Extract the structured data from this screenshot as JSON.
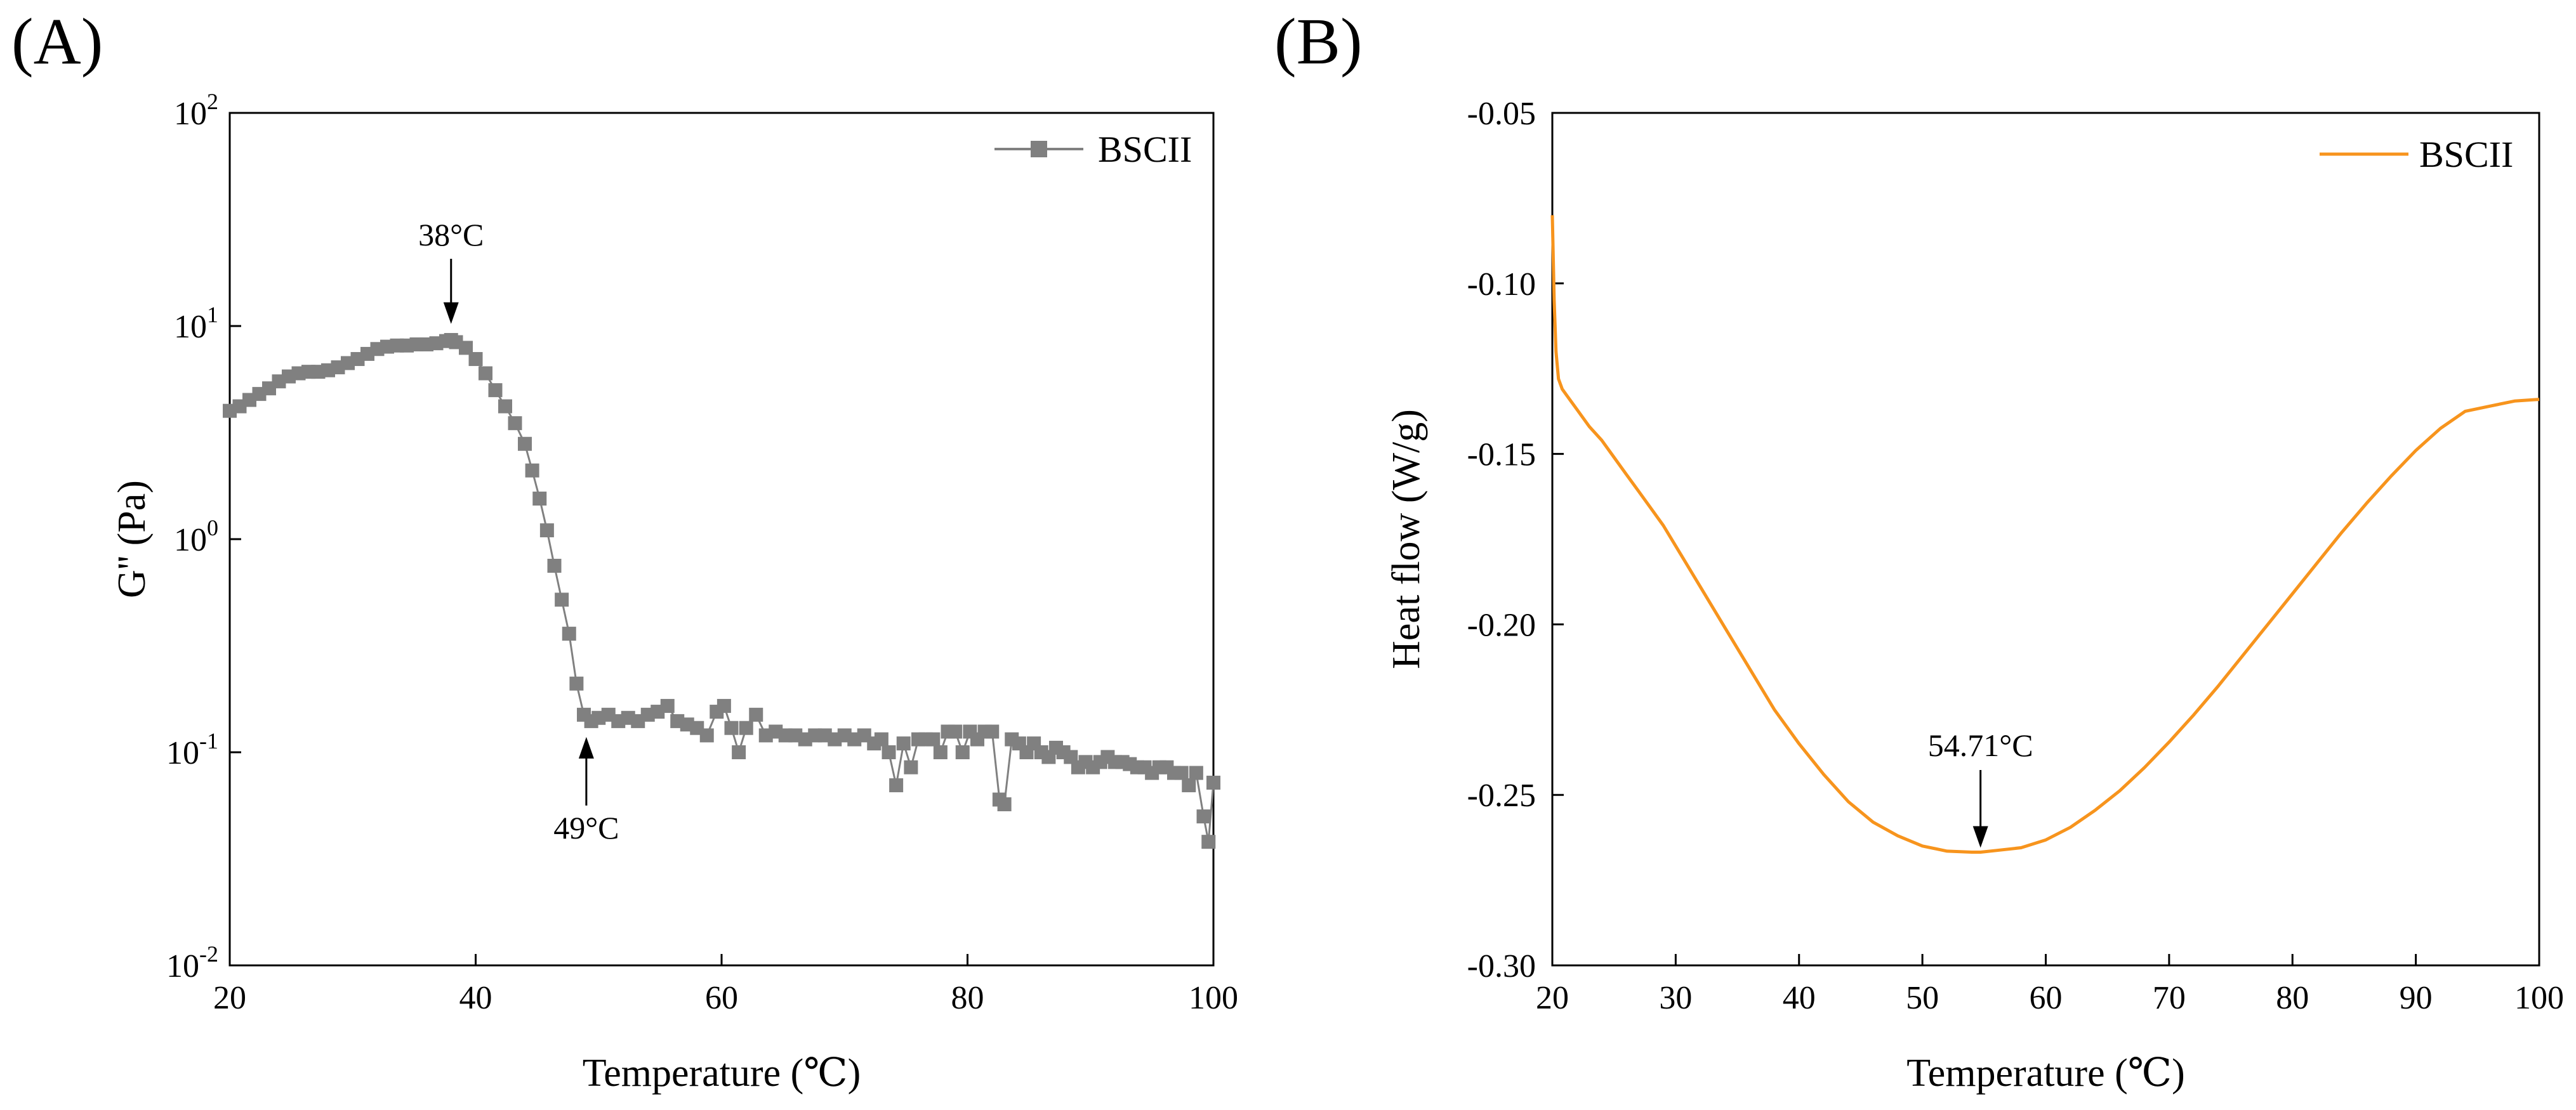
{
  "chart_data": [
    {
      "panel": "(A)",
      "type": "line",
      "marker": "square",
      "title": "",
      "xlabel": "Temperature (℃)",
      "ylabel": "G'' (Pa)",
      "yscale": "log",
      "xlim": [
        20,
        100
      ],
      "ylim": [
        0.01,
        100
      ],
      "xticks": [
        20,
        40,
        60,
        80,
        100
      ],
      "xtick_labels": [
        "20",
        "40",
        "60",
        "80",
        "100"
      ],
      "yticks": [
        0.01,
        0.1,
        1,
        10,
        100
      ],
      "ytick_labels": [
        {
          "base": "10",
          "exp": "-2"
        },
        {
          "base": "10",
          "exp": "-1"
        },
        {
          "base": "10",
          "exp": "0"
        },
        {
          "base": "10",
          "exp": "1"
        },
        {
          "base": "10",
          "exp": "2"
        }
      ],
      "grid": false,
      "legend": {
        "position": "top-right",
        "entries": [
          "BSCII"
        ]
      },
      "color": "#808080",
      "series": [
        {
          "name": "BSCII",
          "x": [
            20.0,
            20.8,
            21.6,
            22.4,
            23.2,
            24.0,
            24.8,
            25.6,
            26.4,
            27.2,
            28.0,
            28.8,
            29.6,
            30.4,
            31.2,
            32.0,
            32.8,
            33.6,
            34.4,
            35.2,
            36.0,
            36.8,
            37.6,
            38.0,
            38.4,
            39.2,
            40.0,
            40.8,
            41.6,
            42.4,
            43.2,
            44.0,
            44.6,
            45.2,
            45.8,
            46.4,
            47.0,
            47.6,
            48.2,
            48.8,
            49.4,
            50.0,
            50.8,
            51.6,
            52.4,
            53.2,
            54.0,
            54.8,
            55.6,
            56.4,
            57.2,
            58.0,
            58.8,
            59.6,
            60.2,
            60.8,
            61.4,
            62.0,
            62.8,
            63.6,
            64.4,
            65.2,
            66.0,
            66.8,
            67.6,
            68.4,
            69.2,
            70.0,
            70.8,
            71.6,
            72.4,
            73.0,
            73.6,
            74.2,
            74.8,
            75.4,
            76.0,
            76.6,
            77.2,
            77.8,
            78.4,
            79.0,
            79.6,
            80.2,
            80.8,
            81.4,
            82.0,
            82.6,
            83.0,
            83.6,
            84.2,
            84.8,
            85.4,
            86.0,
            86.6,
            87.2,
            87.8,
            88.4,
            89.0,
            89.6,
            90.2,
            90.8,
            91.4,
            92.0,
            92.6,
            93.2,
            93.8,
            94.4,
            95.0,
            95.6,
            96.2,
            96.8,
            97.4,
            98.0,
            98.6,
            99.2,
            99.6,
            100.0
          ],
          "y": [
            4.0,
            4.2,
            4.5,
            4.8,
            5.1,
            5.5,
            5.8,
            6.0,
            6.1,
            6.1,
            6.2,
            6.4,
            6.7,
            7.0,
            7.4,
            7.8,
            8.0,
            8.1,
            8.1,
            8.2,
            8.2,
            8.3,
            8.5,
            8.6,
            8.4,
            7.9,
            7.0,
            6.0,
            5.0,
            4.2,
            3.5,
            2.8,
            2.1,
            1.55,
            1.1,
            0.75,
            0.52,
            0.36,
            0.21,
            0.15,
            0.14,
            0.145,
            0.15,
            0.14,
            0.145,
            0.14,
            0.15,
            0.155,
            0.165,
            0.14,
            0.135,
            0.13,
            0.12,
            0.155,
            0.165,
            0.13,
            0.1,
            0.13,
            0.15,
            0.12,
            0.125,
            0.12,
            0.12,
            0.115,
            0.12,
            0.12,
            0.115,
            0.12,
            0.115,
            0.12,
            0.11,
            0.115,
            0.1,
            0.07,
            0.11,
            0.085,
            0.115,
            0.115,
            0.115,
            0.1,
            0.125,
            0.125,
            0.1,
            0.125,
            0.115,
            0.125,
            0.125,
            0.06,
            0.057,
            0.115,
            0.11,
            0.1,
            0.11,
            0.1,
            0.095,
            0.105,
            0.1,
            0.095,
            0.085,
            0.09,
            0.085,
            0.09,
            0.095,
            0.09,
            0.09,
            0.088,
            0.085,
            0.085,
            0.08,
            0.085,
            0.085,
            0.08,
            0.08,
            0.07,
            0.08,
            0.05,
            0.038,
            0.072
          ]
        }
      ],
      "annotations": [
        {
          "text": "38°C",
          "x": 38,
          "arrow": "down",
          "y_point": 8.8
        },
        {
          "text": "49°C",
          "x": 49,
          "arrow": "up",
          "y_point": 0.118
        }
      ]
    },
    {
      "panel": "(B)",
      "type": "line",
      "title": "",
      "xlabel": "Temperature (℃)",
      "ylabel": "Heat flow (W/g)",
      "xlim": [
        20,
        100
      ],
      "ylim": [
        -0.3,
        -0.05
      ],
      "xticks": [
        20,
        30,
        40,
        50,
        60,
        70,
        80,
        90,
        100
      ],
      "xtick_labels": [
        "20",
        "30",
        "40",
        "50",
        "60",
        "70",
        "80",
        "90",
        "100"
      ],
      "yticks": [
        -0.3,
        -0.25,
        -0.2,
        -0.15,
        -0.1,
        -0.05
      ],
      "ytick_labels": [
        "-0.30",
        "-0.25",
        "-0.20",
        "-0.15",
        "-0.10",
        "-0.05"
      ],
      "grid": false,
      "legend": {
        "position": "top-right",
        "entries": [
          "BSCII"
        ]
      },
      "color": "#F7941D",
      "series": [
        {
          "name": "BSCII",
          "x": [
            20.0,
            20.15,
            20.3,
            20.5,
            20.8,
            21.2,
            22.0,
            23.0,
            24.0,
            25.0,
            26.0,
            27.0,
            28.0,
            29.0,
            30.0,
            32.0,
            34.0,
            36.0,
            38.0,
            40.0,
            42.0,
            44.0,
            46.0,
            48.0,
            50.0,
            52.0,
            54.0,
            54.71,
            56.0,
            58.0,
            60.0,
            62.0,
            64.0,
            66.0,
            68.0,
            70.0,
            72.0,
            74.0,
            76.0,
            78.0,
            80.0,
            82.0,
            84.0,
            86.0,
            88.0,
            90.0,
            92.0,
            94.0,
            96.0,
            98.0,
            100.0
          ],
          "y": [
            -0.08,
            -0.105,
            -0.12,
            -0.128,
            -0.131,
            -0.133,
            -0.137,
            -0.142,
            -0.146,
            -0.151,
            -0.156,
            -0.161,
            -0.166,
            -0.171,
            -0.177,
            -0.189,
            -0.201,
            -0.213,
            -0.225,
            -0.235,
            -0.244,
            -0.252,
            -0.258,
            -0.262,
            -0.265,
            -0.2665,
            -0.2668,
            -0.2668,
            -0.2663,
            -0.2655,
            -0.2632,
            -0.2595,
            -0.2545,
            -0.2488,
            -0.242,
            -0.2345,
            -0.2265,
            -0.218,
            -0.209,
            -0.2,
            -0.191,
            -0.182,
            -0.173,
            -0.1645,
            -0.1565,
            -0.149,
            -0.1425,
            -0.1375,
            -0.136,
            -0.1345,
            -0.134
          ]
        }
      ],
      "annotations": [
        {
          "text": "54.71°C",
          "x": 54.71,
          "arrow": "down",
          "y_point": -0.2655
        }
      ]
    }
  ]
}
